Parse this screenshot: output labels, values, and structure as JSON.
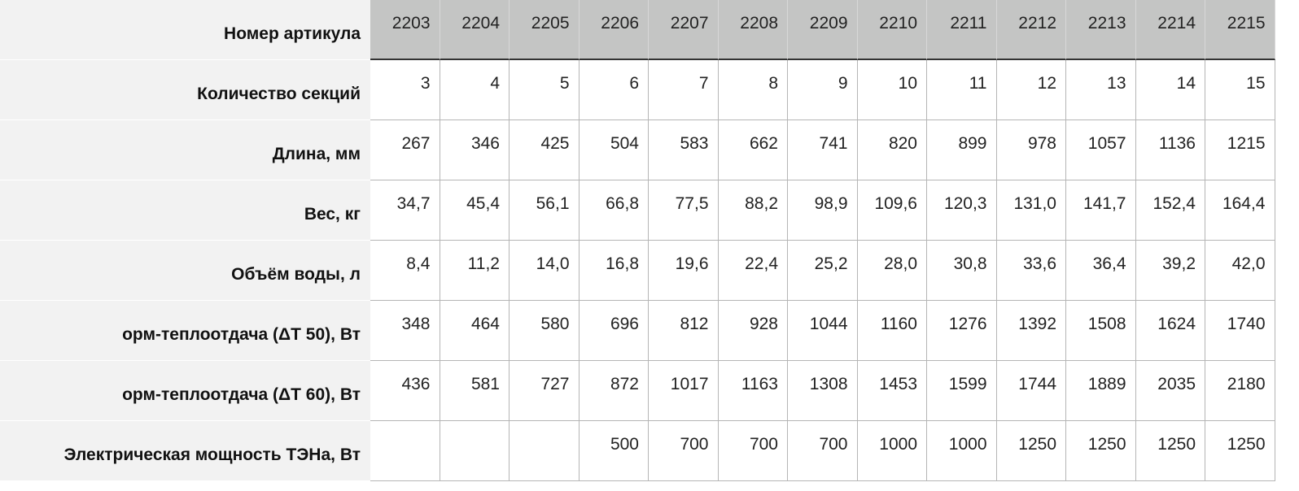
{
  "table": {
    "header_label": "Номер артикула",
    "columns": [
      "2203",
      "2204",
      "2205",
      "2206",
      "2207",
      "2208",
      "2209",
      "2210",
      "2211",
      "2212",
      "2213",
      "2214",
      "2215"
    ],
    "rows": [
      {
        "label": "Количество секций",
        "values": [
          "3",
          "4",
          "5",
          "6",
          "7",
          "8",
          "9",
          "10",
          "11",
          "12",
          "13",
          "14",
          "15"
        ]
      },
      {
        "label": "Длина, мм",
        "values": [
          "267",
          "346",
          "425",
          "504",
          "583",
          "662",
          "741",
          "820",
          "899",
          "978",
          "1057",
          "1136",
          "1215"
        ]
      },
      {
        "label": "Вес, кг",
        "values": [
          "34,7",
          "45,4",
          "56,1",
          "66,8",
          "77,5",
          "88,2",
          "98,9",
          "109,6",
          "120,3",
          "131,0",
          "141,7",
          "152,4",
          "164,4"
        ]
      },
      {
        "label": "Объём воды, л",
        "values": [
          "8,4",
          "11,2",
          "14,0",
          "16,8",
          "19,6",
          "22,4",
          "25,2",
          "28,0",
          "30,8",
          "33,6",
          "36,4",
          "39,2",
          "42,0"
        ]
      },
      {
        "label": "орм-теплоотдача  (ΔT 50), Вт",
        "values": [
          "348",
          "464",
          "580",
          "696",
          "812",
          "928",
          "1044",
          "1160",
          "1276",
          "1392",
          "1508",
          "1624",
          "1740"
        ]
      },
      {
        "label": "орм-теплоотдача (ΔT 60), Вт",
        "values": [
          "436",
          "581",
          "727",
          "872",
          "1017",
          "1163",
          "1308",
          "1453",
          "1599",
          "1744",
          "1889",
          "2035",
          "2180"
        ]
      },
      {
        "label": "Электрическая мощность ТЭНа, Вт",
        "values": [
          null,
          null,
          null,
          "500",
          "700",
          "700",
          "700",
          "1000",
          "1000",
          "1250",
          "1250",
          "1250",
          "1250"
        ]
      }
    ]
  }
}
